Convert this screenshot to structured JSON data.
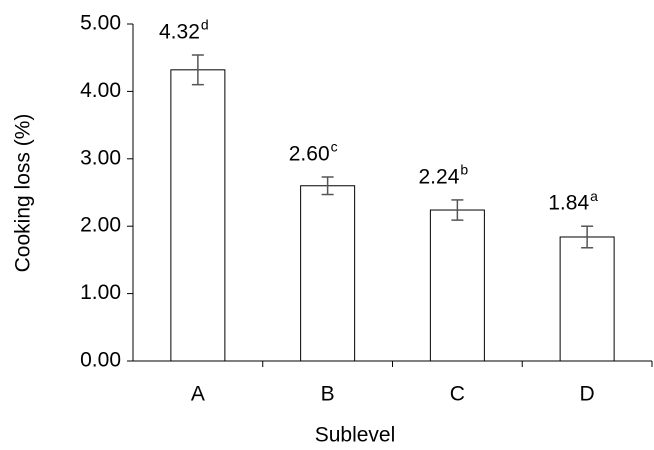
{
  "chart_data": {
    "type": "bar",
    "x_label": "Sublevel",
    "y_label": "Cooking loss (%)",
    "categories": [
      "A",
      "B",
      "C",
      "D"
    ],
    "values": [
      4.32,
      2.6,
      2.24,
      1.84
    ],
    "value_labels": [
      "4.32",
      "2.60",
      "2.24",
      "1.84"
    ],
    "significance_letters": [
      "d",
      "c",
      "b",
      "a"
    ],
    "errors": [
      0.22,
      0.13,
      0.15,
      0.16
    ],
    "color": "#ffffff",
    "ylim": [
      0,
      5
    ],
    "yticks": [
      {
        "value": 0,
        "label": "0.00"
      },
      {
        "value": 1,
        "label": "1.00"
      },
      {
        "value": 2,
        "label": "2.00"
      },
      {
        "value": 3,
        "label": "3.00"
      },
      {
        "value": 4,
        "label": "4.00"
      },
      {
        "value": 5,
        "label": "5.00"
      }
    ]
  }
}
